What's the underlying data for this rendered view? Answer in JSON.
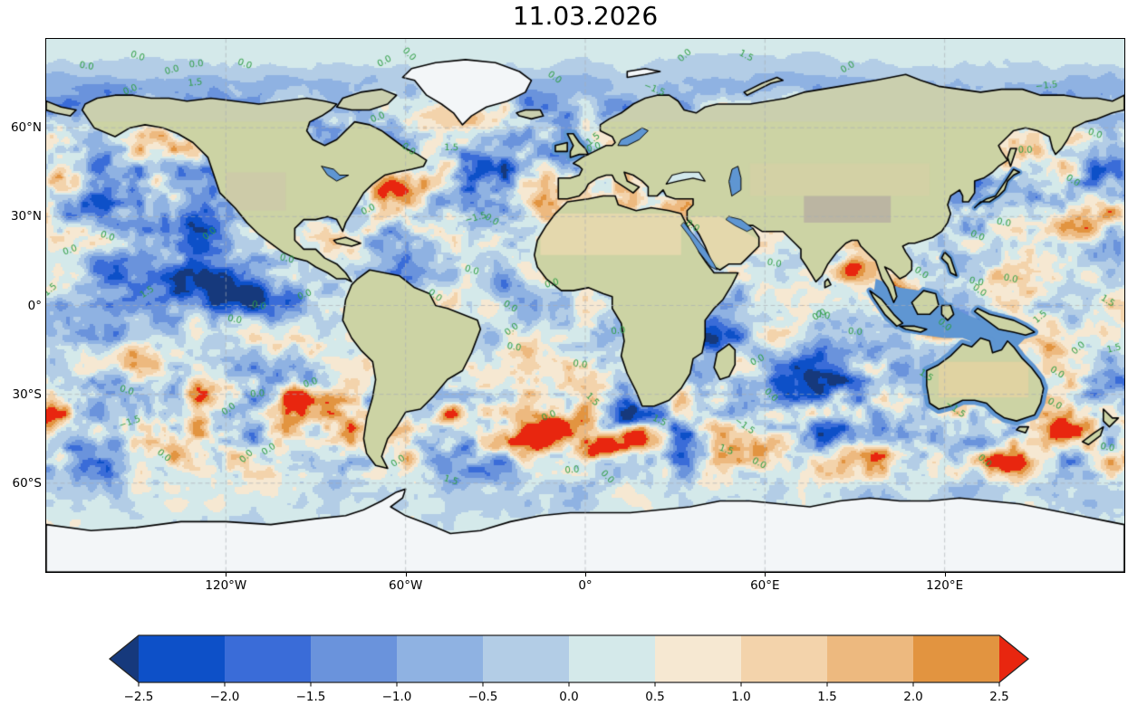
{
  "title": "11.03.2026",
  "axes": {
    "x_ticks": [
      {
        "label": "120°W",
        "lon": -120
      },
      {
        "label": "60°W",
        "lon": -60
      },
      {
        "label": "0°",
        "lon": 0
      },
      {
        "label": "60°E",
        "lon": 60
      },
      {
        "label": "120°E",
        "lon": 120
      }
    ],
    "y_ticks": [
      {
        "label": "60°N",
        "lat": 60
      },
      {
        "label": "30°N",
        "lat": 30
      },
      {
        "label": "0°",
        "lat": 0
      },
      {
        "label": "30°S",
        "lat": -30
      },
      {
        "label": "60°S",
        "lat": -60
      }
    ],
    "lon_range": [
      -180,
      180
    ],
    "lat_range": [
      -90,
      90
    ]
  },
  "colorbar": {
    "tick_labels": [
      "−2.5",
      "−2.0",
      "−1.5",
      "−1.0",
      "−0.5",
      "0.0",
      "0.5",
      "1.0",
      "1.5",
      "2.0",
      "2.5"
    ],
    "min": -2.5,
    "max": 2.5,
    "step": 0.5,
    "under_color": "#16397c",
    "over_color": "#e8260f",
    "bin_colors": [
      "#0d50c8",
      "#3a6cd8",
      "#6a93dc",
      "#8fb2e2",
      "#b3cde6",
      "#d4e9ea",
      "#f6e8d2",
      "#f3d3ab",
      "#edb97f",
      "#e29440"
    ],
    "outline_color": "#262626"
  },
  "contour_labels": {
    "values": [
      "0.0",
      "1.5",
      "−1.5"
    ],
    "color": "#2f9e44"
  },
  "map_colors": {
    "land": "#ccd3a4",
    "ice": "#f3f6f8",
    "lake": "#5f96d2",
    "inland_sea": "#d2e8ec",
    "desert": "#e7d8ae",
    "mountain": "#b7aea1",
    "tundra": "#c7cbb8",
    "coastline": "#000000",
    "gridline": "#a9aeb4"
  },
  "chart_data": {
    "type": "heatmap",
    "title": "11.03.2026",
    "x_tick_labels": [
      "120°W",
      "60°W",
      "0°",
      "60°E",
      "120°E"
    ],
    "y_tick_labels": [
      "60°N",
      "30°N",
      "0°",
      "30°S",
      "60°S"
    ],
    "colorbar_ticks": [
      -2.5,
      -2.0,
      -1.5,
      -1.0,
      -0.5,
      0.0,
      0.5,
      1.0,
      1.5,
      2.0,
      2.5
    ],
    "colorbar_range": [
      -2.5,
      2.5
    ],
    "colorbar_step": 0.5,
    "contour_label_values": [
      0.0,
      1.5,
      -1.5
    ]
  }
}
